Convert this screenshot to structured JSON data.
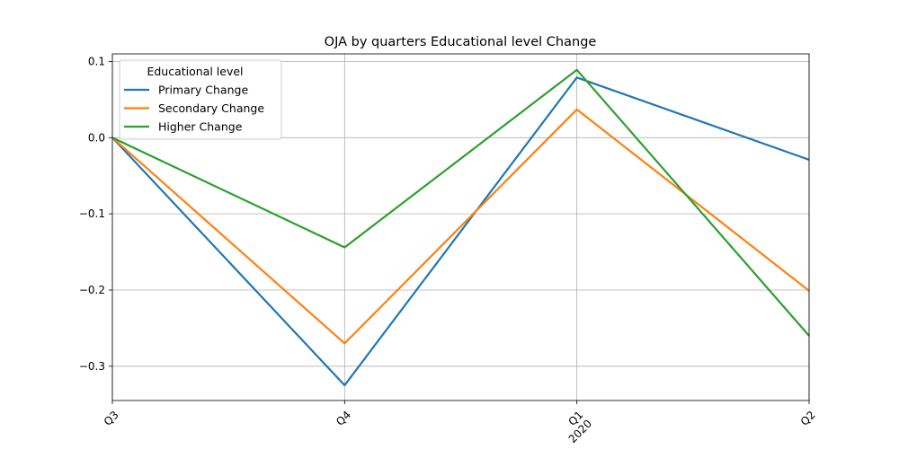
{
  "chart_data": {
    "type": "line",
    "title": "OJA by quarters Educational level Change",
    "xlabel": "",
    "ylabel": "",
    "categories": [
      "Q3",
      "Q4",
      "Q1",
      "Q2"
    ],
    "category_sublabels": [
      "",
      "",
      "2020",
      ""
    ],
    "ylim": [
      -0.345,
      0.11
    ],
    "yticks": [
      0.1,
      0.0,
      -0.1,
      -0.2,
      -0.3
    ],
    "ytick_labels": [
      "0.1",
      "0.0",
      "−0.1",
      "−0.2",
      "−0.3"
    ],
    "grid": true,
    "legend": {
      "title": "Educational level",
      "placement": "top-left"
    },
    "series": [
      {
        "name": "Primary Change",
        "color": "#1f77b4",
        "values": [
          0.0,
          -0.325,
          0.079,
          -0.029
        ]
      },
      {
        "name": "Secondary Change",
        "color": "#ff7f0e",
        "values": [
          0.0,
          -0.27,
          0.037,
          -0.201
        ]
      },
      {
        "name": "Higher Change",
        "color": "#2ca02c",
        "values": [
          0.0,
          -0.144,
          0.089,
          -0.26
        ]
      }
    ]
  }
}
